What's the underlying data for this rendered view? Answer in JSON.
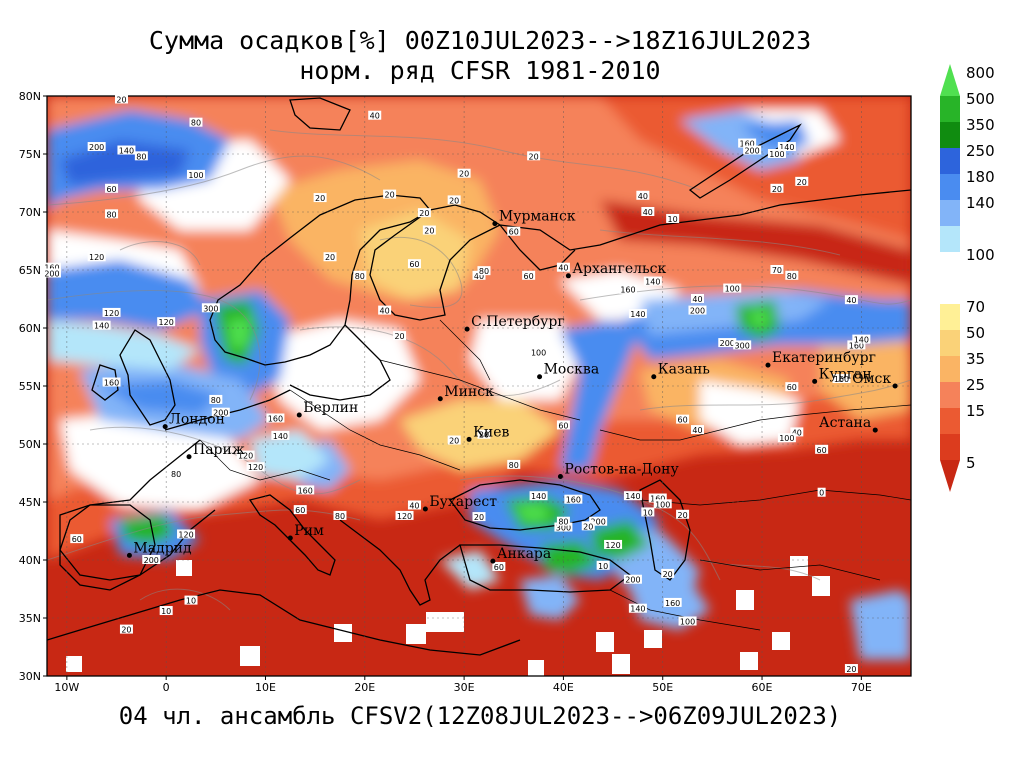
{
  "title_line1": "Сумма осадков[%] 00Z10JUL2023-->18Z16JUL2023",
  "title_line2": "норм. ряд CFSR 1981-2010",
  "footer": "04 чл. ансамбль CFSV2(12Z08JUL2023-->06Z09JUL2023)",
  "lat_ticks": [
    {
      "value": 80,
      "label": "80N"
    },
    {
      "value": 75,
      "label": "75N"
    },
    {
      "value": 70,
      "label": "70N"
    },
    {
      "value": 65,
      "label": "65N"
    },
    {
      "value": 60,
      "label": "60N"
    },
    {
      "value": 55,
      "label": "55N"
    },
    {
      "value": 50,
      "label": "50N"
    },
    {
      "value": 45,
      "label": "45N"
    },
    {
      "value": 40,
      "label": "40N"
    },
    {
      "value": 35,
      "label": "35N"
    },
    {
      "value": 30,
      "label": "30N"
    }
  ],
  "lon_ticks": [
    {
      "value": -10,
      "label": "10W"
    },
    {
      "value": 0,
      "label": "0"
    },
    {
      "value": 10,
      "label": "10E"
    },
    {
      "value": 20,
      "label": "20E"
    },
    {
      "value": 30,
      "label": "30E"
    },
    {
      "value": 40,
      "label": "40E"
    },
    {
      "value": 50,
      "label": "50E"
    },
    {
      "value": 60,
      "label": "60E"
    },
    {
      "value": 70,
      "label": "70E"
    }
  ],
  "cities": [
    {
      "name": "Мурманск",
      "lon": 33.1,
      "lat": 69.0
    },
    {
      "name": "Архангельск",
      "lon": 40.5,
      "lat": 64.5
    },
    {
      "name": "С.Петербург",
      "lon": 30.3,
      "lat": 59.9
    },
    {
      "name": "Москва",
      "lon": 37.6,
      "lat": 55.8
    },
    {
      "name": "Казань",
      "lon": 49.1,
      "lat": 55.8
    },
    {
      "name": "Екатеринбург",
      "lon": 60.6,
      "lat": 56.8
    },
    {
      "name": "Курган",
      "lon": 65.3,
      "lat": 55.4
    },
    {
      "name": "Омск",
      "lon": 73.4,
      "lat": 55.0
    },
    {
      "name": "Астана",
      "lon": 71.4,
      "lat": 51.2
    },
    {
      "name": "Минск",
      "lon": 27.6,
      "lat": 53.9
    },
    {
      "name": "Киев",
      "lon": 30.5,
      "lat": 50.4
    },
    {
      "name": "Берлин",
      "lon": 13.4,
      "lat": 52.5
    },
    {
      "name": "Лондон",
      "lon": -0.1,
      "lat": 51.5
    },
    {
      "name": "Париж",
      "lon": 2.3,
      "lat": 48.9
    },
    {
      "name": "Ростов-на-Дону",
      "lon": 39.7,
      "lat": 47.2
    },
    {
      "name": "Бухарест",
      "lon": 26.1,
      "lat": 44.4
    },
    {
      "name": "Рим",
      "lon": 12.5,
      "lat": 41.9
    },
    {
      "name": "Мадрид",
      "lon": -3.7,
      "lat": 40.4
    },
    {
      "name": "Анкара",
      "lon": 32.9,
      "lat": 39.9
    }
  ],
  "contour_labels": [
    {
      "t": "20",
      "lon": -4.5,
      "lat": 79.7
    },
    {
      "t": "40",
      "lon": 21,
      "lat": 78.3
    },
    {
      "t": "80",
      "lon": 3,
      "lat": 77.7
    },
    {
      "t": "200",
      "lon": -7,
      "lat": 75.6
    },
    {
      "t": "140",
      "lon": -4,
      "lat": 75.3
    },
    {
      "t": "80",
      "lon": -2.5,
      "lat": 74.8
    },
    {
      "t": "100",
      "lon": 3,
      "lat": 73.2
    },
    {
      "t": "60",
      "lon": -5.5,
      "lat": 72.0
    },
    {
      "t": "80",
      "lon": -5.5,
      "lat": 69.8
    },
    {
      "t": "20",
      "lon": 22.5,
      "lat": 71.5
    },
    {
      "t": "20",
      "lon": 15.5,
      "lat": 71.2
    },
    {
      "t": "20",
      "lon": 26,
      "lat": 69.9
    },
    {
      "t": "20",
      "lon": 29,
      "lat": 71.0
    },
    {
      "t": "20",
      "lon": 26.5,
      "lat": 68.4
    },
    {
      "t": "20",
      "lon": 16.5,
      "lat": 66.1
    },
    {
      "t": "60",
      "lon": 25,
      "lat": 65.5
    },
    {
      "t": "80",
      "lon": 19.5,
      "lat": 64.5
    },
    {
      "t": "40",
      "lon": 31.5,
      "lat": 64.5
    },
    {
      "t": "60",
      "lon": 36.5,
      "lat": 64.5
    },
    {
      "t": "40",
      "lon": 40,
      "lat": 65.2
    },
    {
      "t": "40",
      "lon": 22,
      "lat": 61.5
    },
    {
      "t": "120",
      "lon": -7,
      "lat": 66.1
    },
    {
      "t": "160",
      "lon": -11.5,
      "lat": 65.2
    },
    {
      "t": "200",
      "lon": -11.5,
      "lat": 64.7
    },
    {
      "t": "120",
      "lon": -5.5,
      "lat": 61.3
    },
    {
      "t": "140",
      "lon": -6.5,
      "lat": 60.2
    },
    {
      "t": "120",
      "lon": 0,
      "lat": 60.5
    },
    {
      "t": "300",
      "lon": 4.5,
      "lat": 61.7
    },
    {
      "t": "20",
      "lon": 23.5,
      "lat": 59.3
    },
    {
      "t": "20",
      "lon": 30,
      "lat": 73.3
    },
    {
      "t": "20",
      "lon": 37,
      "lat": 74.8
    },
    {
      "t": "40",
      "lon": 48,
      "lat": 71.4
    },
    {
      "t": "40",
      "lon": 48.5,
      "lat": 70.0
    },
    {
      "t": "10",
      "lon": 51,
      "lat": 69.4
    },
    {
      "t": "60",
      "lon": 35,
      "lat": 68.3
    },
    {
      "t": "80",
      "lon": 32,
      "lat": 64.9
    },
    {
      "t": "20",
      "lon": 61.5,
      "lat": 72.0
    },
    {
      "t": "20",
      "lon": 64,
      "lat": 72.6
    },
    {
      "t": "160",
      "lon": 58.5,
      "lat": 75.9
    },
    {
      "t": "140",
      "lon": 62.5,
      "lat": 75.6
    },
    {
      "t": "200",
      "lon": 59,
      "lat": 75.3
    },
    {
      "t": "100",
      "lon": 61.5,
      "lat": 75.0
    },
    {
      "t": "70",
      "lon": 61.5,
      "lat": 65.0
    },
    {
      "t": "80",
      "lon": 63,
      "lat": 64.5
    },
    {
      "t": "100",
      "lon": 57,
      "lat": 63.4
    },
    {
      "t": "40",
      "lon": 69,
      "lat": 62.4
    },
    {
      "t": "140",
      "lon": 49,
      "lat": 64.0
    },
    {
      "t": "160",
      "lon": 46.5,
      "lat": 63.3
    },
    {
      "t": "200",
      "lon": 53.5,
      "lat": 61.5
    },
    {
      "t": "200",
      "lon": 56.5,
      "lat": 58.7
    },
    {
      "t": "300",
      "lon": 58,
      "lat": 58.5
    },
    {
      "t": "160",
      "lon": 69.5,
      "lat": 58.5
    },
    {
      "t": "140",
      "lon": 70,
      "lat": 59.0
    },
    {
      "t": "100",
      "lon": 37.5,
      "lat": 57.9
    },
    {
      "t": "160",
      "lon": -5.5,
      "lat": 55.3
    },
    {
      "t": "80",
      "lon": 5,
      "lat": 53.8
    },
    {
      "t": "160",
      "lon": 11,
      "lat": 52.2
    },
    {
      "t": "140",
      "lon": 11.5,
      "lat": 50.7
    },
    {
      "t": "120",
      "lon": 8,
      "lat": 49.0
    },
    {
      "t": "120",
      "lon": 9,
      "lat": 48.0
    },
    {
      "t": "80",
      "lon": 1,
      "lat": 47.4
    },
    {
      "t": "200",
      "lon": 5.5,
      "lat": 52.7
    },
    {
      "t": "160",
      "lon": 14,
      "lat": 46.0
    },
    {
      "t": "60",
      "lon": 13.5,
      "lat": 44.3
    },
    {
      "t": "80",
      "lon": 17.5,
      "lat": 43.8
    },
    {
      "t": "120",
      "lon": 24,
      "lat": 43.8
    },
    {
      "t": "40",
      "lon": 25,
      "lat": 44.7
    },
    {
      "t": "20",
      "lon": 29,
      "lat": 50.3
    },
    {
      "t": "20",
      "lon": 32,
      "lat": 50.8
    },
    {
      "t": "80",
      "lon": 35,
      "lat": 48.2
    },
    {
      "t": "140",
      "lon": 37.5,
      "lat": 45.5
    },
    {
      "t": "160",
      "lon": 41,
      "lat": 45.2
    },
    {
      "t": "300",
      "lon": 40,
      "lat": 42.8
    },
    {
      "t": "200",
      "lon": 43.5,
      "lat": 43.3
    },
    {
      "t": "140",
      "lon": 47,
      "lat": 45.5
    },
    {
      "t": "160",
      "lon": 49.5,
      "lat": 45.3
    },
    {
      "t": "100",
      "lon": 50,
      "lat": 44.8
    },
    {
      "t": "20",
      "lon": 52,
      "lat": 43.9
    },
    {
      "t": "10",
      "lon": 48.5,
      "lat": 44.1
    },
    {
      "t": "20",
      "lon": 42.5,
      "lat": 42.9
    },
    {
      "t": "80",
      "lon": 40,
      "lat": 43.3
    },
    {
      "t": "120",
      "lon": 45,
      "lat": 41.3
    },
    {
      "t": "200",
      "lon": 47,
      "lat": 38.3
    },
    {
      "t": "20",
      "lon": 50.5,
      "lat": 38.8
    },
    {
      "t": "10",
      "lon": 44,
      "lat": 39.5
    },
    {
      "t": "140",
      "lon": 47.5,
      "lat": 35.8
    },
    {
      "t": "160",
      "lon": 51,
      "lat": 36.3
    },
    {
      "t": "100",
      "lon": 52.5,
      "lat": 34.7
    },
    {
      "t": "20",
      "lon": 31.5,
      "lat": 43.7
    },
    {
      "t": "60",
      "lon": 33.5,
      "lat": 39.4
    },
    {
      "t": "20",
      "lon": -4,
      "lat": 34.0
    },
    {
      "t": "10",
      "lon": 2.5,
      "lat": 36.5
    },
    {
      "t": "200",
      "lon": -1.5,
      "lat": 40.0
    },
    {
      "t": "60",
      "lon": -9,
      "lat": 41.8
    },
    {
      "t": "120",
      "lon": 2,
      "lat": 42.2
    },
    {
      "t": "10",
      "lon": 0,
      "lat": 35.6
    },
    {
      "t": "0",
      "lon": 66,
      "lat": 45.8
    },
    {
      "t": "20",
      "lon": 69,
      "lat": 30.6
    },
    {
      "t": "60",
      "lon": 52,
      "lat": 52.1
    },
    {
      "t": "40",
      "lon": 53.5,
      "lat": 51.2
    },
    {
      "t": "60",
      "lon": 63,
      "lat": 54.9
    },
    {
      "t": "40",
      "lon": 63.5,
      "lat": 51.0
    },
    {
      "t": "140",
      "lon": 47.5,
      "lat": 61.2
    },
    {
      "t": "40",
      "lon": 53.5,
      "lat": 62.5
    },
    {
      "t": "160",
      "lon": 68,
      "lat": 55.6
    },
    {
      "t": "60",
      "lon": 40,
      "lat": 51.6
    },
    {
      "t": "100",
      "lon": 62.5,
      "lat": 50.5
    },
    {
      "t": "60",
      "lon": 66,
      "lat": 49.5
    }
  ],
  "colorbar": [
    {
      "label": "800",
      "color": "#50e050",
      "arrow": "up"
    },
    {
      "label": "500",
      "color": "#28b428"
    },
    {
      "label": "350",
      "color": "#108c10"
    },
    {
      "label": "250",
      "color": "#2d64dc"
    },
    {
      "label": "180",
      "color": "#4a8cf0"
    },
    {
      "label": "140",
      "color": "#82b4f8"
    },
    {
      "label": "",
      "color": "#b4e6fa"
    },
    {
      "label": "100",
      "color": "#ffffff"
    },
    {
      "label": "",
      "color": "#ffffff"
    },
    {
      "label": "70",
      "color": "#fff096"
    },
    {
      "label": "50",
      "color": "#fad278"
    },
    {
      "label": "35",
      "color": "#fab464"
    },
    {
      "label": "25",
      "color": "#f5825a"
    },
    {
      "label": "15",
      "color": "#eb5a32"
    },
    {
      "label": "",
      "color": "#dc3c1e"
    },
    {
      "label": "5",
      "color": "#c82814",
      "arrow": "down"
    }
  ]
}
